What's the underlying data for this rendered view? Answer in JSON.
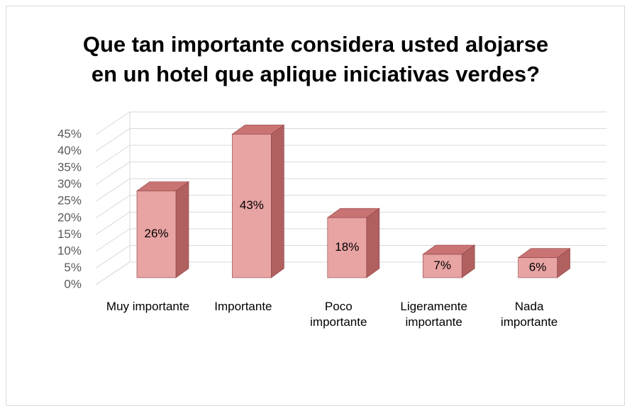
{
  "chart_data": {
    "type": "bar3d",
    "title": "Que tan importante considera usted alojarse en un hotel que aplique iniciativas verdes?",
    "categories": [
      "Muy importante",
      "Importante",
      "Poco importante",
      "Ligeramente importante",
      "Nada importante"
    ],
    "values": [
      26,
      43,
      18,
      7,
      6
    ],
    "value_labels": [
      "26%",
      "43%",
      "18%",
      "7%",
      "6%"
    ],
    "color": "#e8a3a3",
    "ylim": [
      0,
      45
    ],
    "yticks": [
      {
        "value": 0,
        "label": "0%"
      },
      {
        "value": 5,
        "label": "5%"
      },
      {
        "value": 10,
        "label": "10%"
      },
      {
        "value": 15,
        "label": "15%"
      },
      {
        "value": 20,
        "label": "20%"
      },
      {
        "value": 25,
        "label": "25%"
      },
      {
        "value": 30,
        "label": "30%"
      },
      {
        "value": 35,
        "label": "35%"
      },
      {
        "value": 40,
        "label": "40%"
      },
      {
        "value": 45,
        "label": "45%"
      }
    ],
    "grid": true
  }
}
